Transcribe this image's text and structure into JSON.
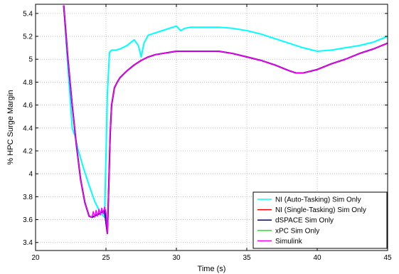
{
  "chart_data": {
    "type": "line",
    "title": "",
    "xlabel": "Time (s)",
    "ylabel": "% HPC Surge Margin",
    "xlim": [
      20,
      45
    ],
    "ylim": [
      3.33,
      5.48
    ],
    "xticks": [
      20,
      25,
      30,
      35,
      40,
      45
    ],
    "yticks": [
      3.4,
      3.6,
      3.8,
      4,
      4.2,
      4.4,
      4.6,
      4.8,
      5,
      5.2,
      5.4
    ],
    "xtick_labels": [
      "20",
      "25",
      "30",
      "35",
      "40",
      "45"
    ],
    "ytick_labels": [
      "3.4",
      "3.6",
      "3.8",
      "4",
      "4.2",
      "4.4",
      "4.6",
      "4.8",
      "5",
      "5.2",
      "5.4"
    ],
    "grid": true,
    "legend_position": "bottom-right",
    "series": [
      {
        "name": "NI (Auto-Tasking) Sim Only",
        "color": "#00ffff",
        "x": [
          22.0,
          22.2,
          22.4,
          22.6,
          22.8,
          23.0,
          23.4,
          23.8,
          24.2,
          24.6,
          24.9,
          25.1,
          25.25,
          25.4,
          25.7,
          26.0,
          26.5,
          27.0,
          27.3,
          27.5,
          27.7,
          28.0,
          28.5,
          29.0,
          29.5,
          30.0,
          30.3,
          30.6,
          31.0,
          32.0,
          33.0,
          34.0,
          35.0,
          36.0,
          37.0,
          38.0,
          39.0,
          40.0,
          41.0,
          42.0,
          43.0,
          44.0,
          45.0
        ],
        "values": [
          5.47,
          5.1,
          4.75,
          4.4,
          4.33,
          4.22,
          4.05,
          3.9,
          3.76,
          3.66,
          3.62,
          4.7,
          5.06,
          5.08,
          5.08,
          5.09,
          5.12,
          5.17,
          5.12,
          5.02,
          5.14,
          5.21,
          5.23,
          5.25,
          5.27,
          5.29,
          5.25,
          5.27,
          5.28,
          5.28,
          5.28,
          5.27,
          5.25,
          5.22,
          5.18,
          5.14,
          5.1,
          5.07,
          5.08,
          5.1,
          5.12,
          5.15,
          5.2
        ]
      },
      {
        "name": "NI (Single-Tasking) Sim Only",
        "color": "#ff0000",
        "x": [
          22.0,
          22.3,
          22.6,
          22.9,
          23.2,
          23.5,
          23.8,
          24.0,
          24.5,
          24.9,
          25.1,
          25.2,
          25.3,
          25.4,
          25.6,
          25.8,
          26.0,
          26.5,
          27.0,
          27.5,
          28.0,
          28.5,
          29.0,
          29.5,
          30.0,
          31.0,
          32.0,
          33.0,
          34.0,
          35.0,
          36.0,
          37.0,
          38.0,
          38.5,
          39.0,
          40.0,
          41.0,
          42.0,
          43.0,
          44.0,
          45.0
        ],
        "values": [
          5.47,
          5.0,
          4.6,
          4.25,
          3.95,
          3.75,
          3.63,
          3.62,
          3.65,
          3.68,
          3.48,
          3.9,
          4.35,
          4.6,
          4.75,
          4.8,
          4.84,
          4.9,
          4.95,
          4.99,
          5.02,
          5.04,
          5.05,
          5.06,
          5.07,
          5.07,
          5.07,
          5.07,
          5.05,
          5.02,
          4.99,
          4.95,
          4.9,
          4.88,
          4.88,
          4.91,
          4.96,
          5.0,
          5.05,
          5.09,
          5.14
        ]
      },
      {
        "name": "dSPACE Sim Only",
        "color": "#00008b",
        "x": [
          22.0,
          22.3,
          22.6,
          22.9,
          23.2,
          23.5,
          23.8,
          24.0,
          24.5,
          24.9,
          25.1,
          25.2,
          25.3,
          25.4,
          25.6,
          25.8,
          26.0,
          26.5,
          27.0,
          27.5,
          28.0,
          28.5,
          29.0,
          29.5,
          30.0,
          31.0,
          32.0,
          33.0,
          34.0,
          35.0,
          36.0,
          37.0,
          38.0,
          38.5,
          39.0,
          40.0,
          41.0,
          42.0,
          43.0,
          44.0,
          45.0
        ],
        "values": [
          5.47,
          5.0,
          4.6,
          4.25,
          3.95,
          3.75,
          3.63,
          3.62,
          3.65,
          3.68,
          3.48,
          3.9,
          4.35,
          4.6,
          4.75,
          4.8,
          4.84,
          4.9,
          4.95,
          4.99,
          5.02,
          5.04,
          5.05,
          5.06,
          5.07,
          5.07,
          5.07,
          5.07,
          5.05,
          5.02,
          4.99,
          4.95,
          4.9,
          4.88,
          4.88,
          4.91,
          4.96,
          5.0,
          5.05,
          5.09,
          5.14
        ]
      },
      {
        "name": "xPC Sim Only",
        "color": "#00ff00",
        "x": [
          22.0,
          22.3,
          22.6,
          22.9,
          23.2,
          23.5,
          23.8,
          24.0,
          24.5,
          24.9,
          25.1,
          25.2,
          25.3,
          25.4,
          25.6,
          25.8,
          26.0,
          26.5,
          27.0,
          27.5,
          28.0,
          28.5,
          29.0,
          29.5,
          30.0,
          31.0,
          32.0,
          33.0,
          34.0,
          35.0,
          36.0,
          37.0,
          38.0,
          38.5,
          39.0,
          40.0,
          41.0,
          42.0,
          43.0,
          44.0,
          45.0
        ],
        "values": [
          5.47,
          5.0,
          4.6,
          4.25,
          3.95,
          3.75,
          3.63,
          3.62,
          3.65,
          3.68,
          3.48,
          3.9,
          4.35,
          4.6,
          4.75,
          4.8,
          4.84,
          4.9,
          4.95,
          4.99,
          5.02,
          5.04,
          5.05,
          5.06,
          5.07,
          5.07,
          5.07,
          5.07,
          5.05,
          5.02,
          4.99,
          4.95,
          4.9,
          4.88,
          4.88,
          4.91,
          4.96,
          5.0,
          5.05,
          5.09,
          5.14
        ]
      },
      {
        "name": "Simulink",
        "color": "#ff00ff",
        "x": [
          22.0,
          22.3,
          22.6,
          22.9,
          23.2,
          23.5,
          23.8,
          24.0,
          24.1,
          24.2,
          24.3,
          24.4,
          24.5,
          24.6,
          24.7,
          24.8,
          24.9,
          25.0,
          25.1,
          25.2,
          25.3,
          25.4,
          25.6,
          25.8,
          26.0,
          26.5,
          27.0,
          27.5,
          28.0,
          28.5,
          29.0,
          29.5,
          30.0,
          31.0,
          32.0,
          33.0,
          34.0,
          35.0,
          36.0,
          37.0,
          38.0,
          38.5,
          39.0,
          40.0,
          41.0,
          42.0,
          43.0,
          44.0,
          45.0
        ],
        "values": [
          5.47,
          5.0,
          4.6,
          4.25,
          3.95,
          3.75,
          3.63,
          3.62,
          3.67,
          3.62,
          3.68,
          3.63,
          3.69,
          3.64,
          3.7,
          3.65,
          3.71,
          3.66,
          3.48,
          3.9,
          4.35,
          4.6,
          4.75,
          4.8,
          4.84,
          4.9,
          4.95,
          4.99,
          5.02,
          5.04,
          5.05,
          5.06,
          5.07,
          5.07,
          5.07,
          5.07,
          5.05,
          5.02,
          4.99,
          4.95,
          4.9,
          4.88,
          4.88,
          4.91,
          4.96,
          5.0,
          5.05,
          5.09,
          5.14
        ]
      }
    ]
  }
}
